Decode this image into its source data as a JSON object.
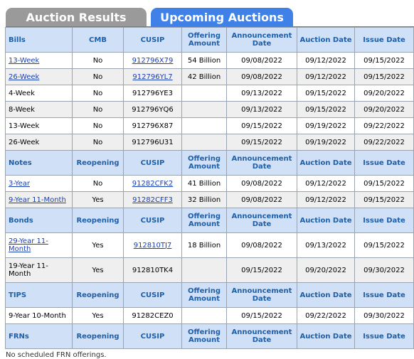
{
  "tabs": {
    "results": "Auction Results",
    "upcoming": "Upcoming Auctions"
  },
  "sections": [
    {
      "header": [
        "Bills",
        "CMB",
        "CUSIP",
        "Offering Amount",
        "Announcement Date",
        "Auction Date",
        "Issue Date"
      ],
      "rows": [
        {
          "term": "13-Week",
          "link": true,
          "opt": "No",
          "cusip": "912796X79",
          "cusip_link": true,
          "amount": "54 Billion",
          "ann": "09/08/2022",
          "auction": "09/12/2022",
          "issue": "09/15/2022"
        },
        {
          "term": "26-Week",
          "link": true,
          "opt": "No",
          "cusip": "912796YL7",
          "cusip_link": true,
          "amount": "42 Billion",
          "ann": "09/08/2022",
          "auction": "09/12/2022",
          "issue": "09/15/2022"
        },
        {
          "term": "4-Week",
          "link": false,
          "opt": "No",
          "cusip": "912796YE3",
          "cusip_link": false,
          "amount": "",
          "ann": "09/13/2022",
          "auction": "09/15/2022",
          "issue": "09/20/2022"
        },
        {
          "term": "8-Week",
          "link": false,
          "opt": "No",
          "cusip": "912796YQ6",
          "cusip_link": false,
          "amount": "",
          "ann": "09/13/2022",
          "auction": "09/15/2022",
          "issue": "09/20/2022"
        },
        {
          "term": "13-Week",
          "link": false,
          "opt": "No",
          "cusip": "912796X87",
          "cusip_link": false,
          "amount": "",
          "ann": "09/15/2022",
          "auction": "09/19/2022",
          "issue": "09/22/2022"
        },
        {
          "term": "26-Week",
          "link": false,
          "opt": "No",
          "cusip": "912796U31",
          "cusip_link": false,
          "amount": "",
          "ann": "09/15/2022",
          "auction": "09/19/2022",
          "issue": "09/22/2022"
        }
      ]
    },
    {
      "header": [
        "Notes",
        "Reopening",
        "CUSIP",
        "Offering Amount",
        "Announcement Date",
        "Auction Date",
        "Issue Date"
      ],
      "rows": [
        {
          "term": "3-Year",
          "link": true,
          "opt": "No",
          "cusip": "91282CFK2",
          "cusip_link": true,
          "amount": "41 Billion",
          "ann": "09/08/2022",
          "auction": "09/12/2022",
          "issue": "09/15/2022"
        },
        {
          "term": "9-Year 11-Month",
          "link": true,
          "opt": "Yes",
          "cusip": "91282CFF3",
          "cusip_link": true,
          "amount": "32 Billion",
          "ann": "09/08/2022",
          "auction": "09/12/2022",
          "issue": "09/15/2022"
        }
      ]
    },
    {
      "header": [
        "Bonds",
        "Reopening",
        "CUSIP",
        "Offering Amount",
        "Announcement Date",
        "Auction Date",
        "Issue Date"
      ],
      "rows": [
        {
          "term": "29-Year 11-Month",
          "link": true,
          "tall": true,
          "opt": "Yes",
          "cusip": "912810TJ7",
          "cusip_link": true,
          "amount": "18 Billion",
          "ann": "09/08/2022",
          "auction": "09/13/2022",
          "issue": "09/15/2022"
        },
        {
          "term": "19-Year 11-Month",
          "link": false,
          "tall": true,
          "opt": "Yes",
          "cusip": "912810TK4",
          "cusip_link": false,
          "amount": "",
          "ann": "09/15/2022",
          "auction": "09/20/2022",
          "issue": "09/30/2022"
        }
      ]
    },
    {
      "header": [
        "TIPS",
        "Reopening",
        "CUSIP",
        "Offering Amount",
        "Announcement Date",
        "Auction Date",
        "Issue Date"
      ],
      "rows": [
        {
          "term": "9-Year 10-Month",
          "link": false,
          "opt": "Yes",
          "cusip": "91282CEZ0",
          "cusip_link": false,
          "amount": "",
          "ann": "09/15/2022",
          "auction": "09/22/2022",
          "issue": "09/30/2022"
        }
      ]
    },
    {
      "header": [
        "FRNs",
        "Reopening",
        "CUSIP",
        "Offering Amount",
        "Announcement Date",
        "Auction Date",
        "Issue Date"
      ],
      "rows": []
    }
  ],
  "footnote": "No scheduled FRN offerings.",
  "colors": {
    "header_bg": "#cfe0f7",
    "header_text": "#1f5fa8",
    "tab_active": "#3f81e6",
    "tab_inactive": "#9a9a9a",
    "link": "#1a3fb5"
  }
}
